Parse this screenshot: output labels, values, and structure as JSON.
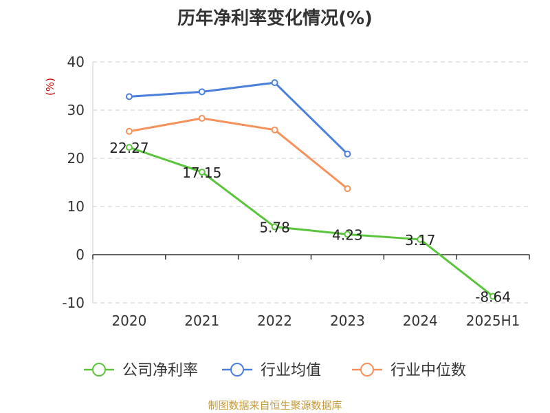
{
  "chart_data": {
    "type": "line",
    "title": "历年净利率变化情况(%)",
    "ylabel": "(%)",
    "xlabel": "",
    "categories": [
      "2020",
      "2021",
      "2022",
      "2023",
      "2024",
      "2025H1"
    ],
    "ylim": [
      -10,
      40
    ],
    "yticks": [
      -10,
      0,
      10,
      20,
      30,
      40
    ],
    "grid": true,
    "legend_position": "bottom",
    "series": [
      {
        "name": "公司净利率",
        "color": "#5ac53c",
        "values": [
          22.27,
          17.15,
          5.78,
          4.23,
          3.17,
          -8.64
        ],
        "labels": [
          "22.27",
          "17.15",
          "5.78",
          "4.23",
          "3.17",
          "-8.64"
        ]
      },
      {
        "name": "行业均值",
        "color": "#4a7fdc",
        "values": [
          32.8,
          33.8,
          35.7,
          20.9,
          null,
          null
        ]
      },
      {
        "name": "行业中位数",
        "color": "#f5915a",
        "values": [
          25.6,
          28.3,
          25.9,
          13.7,
          null,
          null
        ]
      }
    ]
  },
  "footer": {
    "source": "制图数据来自恒生聚源数据库"
  }
}
